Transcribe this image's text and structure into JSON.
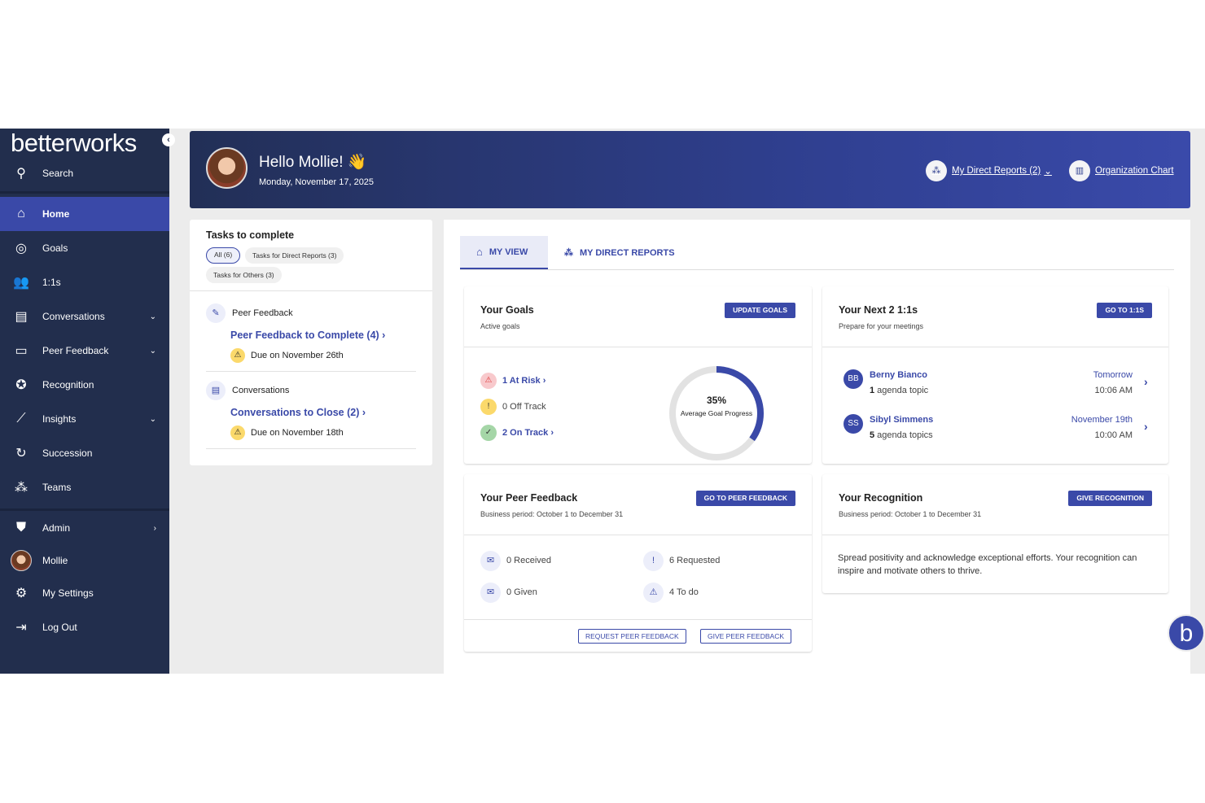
{
  "sidebar": {
    "logo": "betterworks",
    "search": "Search",
    "items": [
      {
        "label": "Home",
        "icon": "home-icon"
      },
      {
        "label": "Goals",
        "icon": "target-icon"
      },
      {
        "label": "1:1s",
        "icon": "people-icon"
      },
      {
        "label": "Conversations",
        "icon": "chat-icon"
      },
      {
        "label": "Peer Feedback",
        "icon": "feedback-icon"
      },
      {
        "label": "Recognition",
        "icon": "award-icon"
      },
      {
        "label": "Insights",
        "icon": "insights-icon"
      },
      {
        "label": "Succession",
        "icon": "succession-icon"
      },
      {
        "label": "Teams",
        "icon": "teams-icon"
      }
    ],
    "bottom": [
      {
        "label": "Admin",
        "icon": "admin-shield-icon"
      },
      {
        "label": "Mollie",
        "icon": "avatar"
      },
      {
        "label": "My Settings",
        "icon": "gear-icon"
      },
      {
        "label": "Log Out",
        "icon": "logout-icon"
      }
    ]
  },
  "header": {
    "greeting": "Hello Mollie! 👋",
    "date": "Monday, November 17, 2025",
    "direct_reports": "My Direct Reports (2)",
    "org_chart": "Organization Chart"
  },
  "tasks": {
    "title": "Tasks to complete",
    "chips": [
      "All (6)",
      "Tasks for Direct Reports (3)",
      "Tasks for Others (3)"
    ],
    "groups": [
      {
        "category": "Peer Feedback",
        "link": "Peer Feedback to Complete (4)",
        "due": "Due on November 26th"
      },
      {
        "category": "Conversations",
        "link": "Conversations to Close (2)",
        "due": "Due on November 18th"
      }
    ]
  },
  "tabs": [
    "MY VIEW",
    "MY DIRECT REPORTS"
  ],
  "goals": {
    "title": "Your Goals",
    "subtitle": "Active goals",
    "button": "UPDATE GOALS",
    "at_risk": "1 At Risk",
    "off_track": "0 Off Track",
    "on_track": "2 On Track",
    "progress_label": "35%",
    "progress_caption": "Average Goal Progress",
    "progress": 0.35,
    "colors": {
      "accent": "#3a49a8",
      "at_risk": "#f8c9cc",
      "off_track": "#fbd96b",
      "on_track": "#a5d6a7"
    }
  },
  "oneones": {
    "title": "Your Next 2 1:1s",
    "subtitle": "Prepare for your meetings",
    "button": "GO TO 1:1S",
    "meetings": [
      {
        "initials": "BB",
        "name": "Berny Bianco",
        "count": "1",
        "topics": " agenda topic",
        "day": "Tomorrow",
        "time": "10:06 AM"
      },
      {
        "initials": "SS",
        "name": "Sibyl Simmens",
        "count": "5",
        "topics": " agenda topics",
        "day": "November 19th",
        "time": "10:00 AM"
      }
    ]
  },
  "peer": {
    "title": "Your Peer Feedback",
    "subtitle": "Business period: October 1 to December 31",
    "button": "GO TO PEER FEEDBACK",
    "received": "0 Received",
    "requested": "6 Requested",
    "given": "0 Given",
    "todo": "4 To do",
    "request_btn": "REQUEST PEER FEEDBACK",
    "give_btn": "GIVE PEER FEEDBACK"
  },
  "recognition": {
    "title": "Your Recognition",
    "subtitle": "Business period: October 1 to December 31",
    "button": "GIVE RECOGNITION",
    "body": "Spread positivity and acknowledge exceptional efforts. Your recognition can inspire and motivate others to thrive."
  }
}
